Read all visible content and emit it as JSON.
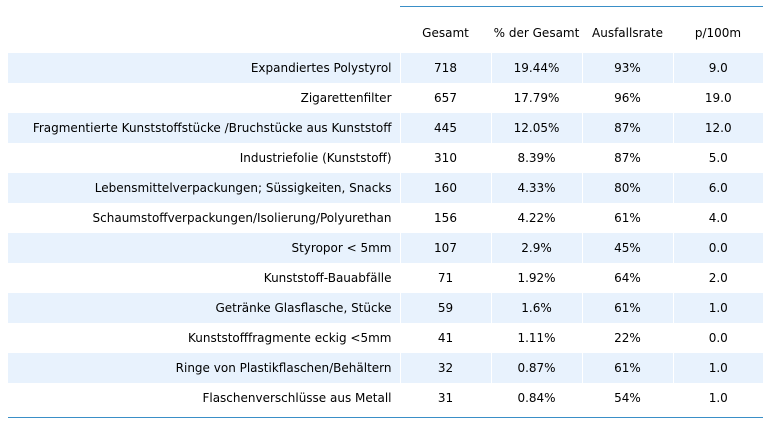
{
  "table": {
    "headers": [
      "",
      "Gesamt",
      "% der Gesamt",
      "Ausfallsrate",
      "p/100m"
    ],
    "rows": [
      [
        "Expandiertes Polystyrol",
        "718",
        "19.44%",
        "93%",
        "9.0"
      ],
      [
        "Zigarettenfilter",
        "657",
        "17.79%",
        "96%",
        "19.0"
      ],
      [
        "Fragmentierte Kunststoffstücke /Bruchstücke aus Kunststoff",
        "445",
        "12.05%",
        "87%",
        "12.0"
      ],
      [
        "Industriefolie (Kunststoff)",
        "310",
        "8.39%",
        "87%",
        "5.0"
      ],
      [
        "Lebensmittelverpackungen; Süssigkeiten, Snacks",
        "160",
        "4.33%",
        "80%",
        "6.0"
      ],
      [
        "Schaumstoffverpackungen/Isolierung/Polyurethan",
        "156",
        "4.22%",
        "61%",
        "4.0"
      ],
      [
        "Styropor < 5mm",
        "107",
        "2.9%",
        "45%",
        "0.0"
      ],
      [
        "Kunststoff-Bauabfälle",
        "71",
        "1.92%",
        "64%",
        "2.0"
      ],
      [
        "Getränke Glasflasche, Stücke",
        "59",
        "1.6%",
        "61%",
        "1.0"
      ],
      [
        "Kunststofffragmente eckig <5mm",
        "41",
        "1.11%",
        "22%",
        "0.0"
      ],
      [
        "Ringe von Plastikflaschen/Behältern",
        "32",
        "0.87%",
        "61%",
        "1.0"
      ],
      [
        "Flaschenverschlüsse aus Metall",
        "31",
        "0.84%",
        "54%",
        "1.0"
      ]
    ]
  },
  "colors": {
    "stripe": "#e8f2fd",
    "rule": "#3a8fc7",
    "text": "#000000"
  }
}
